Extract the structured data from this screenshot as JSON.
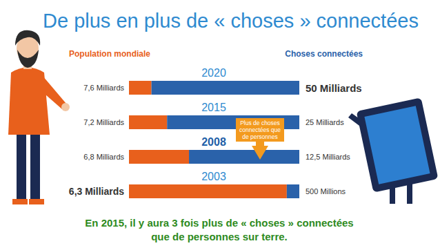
{
  "chart_data": {
    "type": "bar",
    "orientation": "horizontal",
    "stacked": true,
    "data_labels": true,
    "title": "De plus en plus de « choses » connectées",
    "categories": [
      "2020",
      "2015",
      "2008",
      "2003"
    ],
    "series": [
      {
        "name": "Population mondiale",
        "color": "#e8601c",
        "values": [
          7.6,
          7.2,
          6.8,
          6.3
        ],
        "value_labels": [
          "7,6 Milliards",
          "7,2 Milliards",
          "6,8 Milliards",
          "6,3 Milliards"
        ]
      },
      {
        "name": "Choses connectées",
        "color": "#2a62aa",
        "values": [
          50,
          25,
          12.5,
          0.5
        ],
        "value_labels": [
          "50 Milliards",
          "25 Milliards",
          "12,5 Milliards",
          "500 Millions"
        ]
      }
    ],
    "annotations": [
      {
        "text": "Plus de choses connectées que de personnes",
        "at": "2008"
      }
    ],
    "footer": [
      "En 2015, il y aura 3 fois plus de « choses » connectées",
      "que de personnes sur terre."
    ]
  }
}
